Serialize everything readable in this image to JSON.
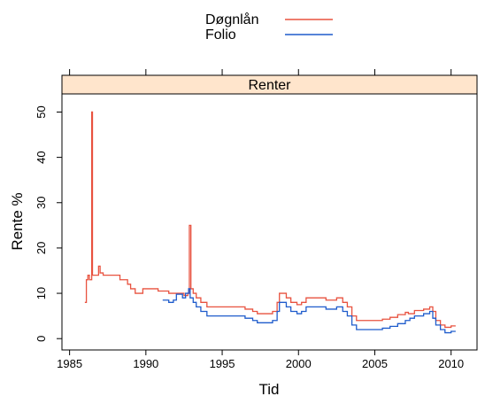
{
  "chart_data": {
    "type": "line",
    "strip_title": "Renter",
    "xlabel": "Tid",
    "ylabel": "Rente %",
    "xlim": [
      1984.5,
      2011.7
    ],
    "ylim": [
      -2.5,
      54
    ],
    "x_ticks": [
      1985,
      1990,
      1995,
      2000,
      2005,
      2010
    ],
    "y_ticks": [
      0,
      10,
      20,
      30,
      40,
      50
    ],
    "grid": false,
    "legend_position": "top",
    "step": true,
    "series": [
      {
        "name": "Døgnlån",
        "color": "#e8523f",
        "points": [
          [
            1986.0,
            8
          ],
          [
            1986.1,
            13
          ],
          [
            1986.2,
            14
          ],
          [
            1986.3,
            13
          ],
          [
            1986.4,
            13
          ],
          [
            1986.45,
            50
          ],
          [
            1986.5,
            14
          ],
          [
            1986.8,
            14
          ],
          [
            1986.9,
            16
          ],
          [
            1987.0,
            14.5
          ],
          [
            1987.2,
            14
          ],
          [
            1988.0,
            14
          ],
          [
            1988.3,
            13
          ],
          [
            1988.8,
            12
          ],
          [
            1989.0,
            11
          ],
          [
            1989.3,
            10
          ],
          [
            1989.8,
            11
          ],
          [
            1990.5,
            11
          ],
          [
            1990.8,
            10.5
          ],
          [
            1991.5,
            10
          ],
          [
            1992.0,
            10
          ],
          [
            1992.5,
            9.5
          ],
          [
            1992.75,
            10
          ],
          [
            1992.85,
            25
          ],
          [
            1992.95,
            11
          ],
          [
            1993.1,
            10
          ],
          [
            1993.3,
            9
          ],
          [
            1993.6,
            8
          ],
          [
            1994.0,
            7
          ],
          [
            1995.0,
            7
          ],
          [
            1996.0,
            7
          ],
          [
            1996.5,
            6.5
          ],
          [
            1997.0,
            6
          ],
          [
            1997.3,
            5.5
          ],
          [
            1998.0,
            5.5
          ],
          [
            1998.3,
            6
          ],
          [
            1998.6,
            8
          ],
          [
            1998.75,
            10
          ],
          [
            1999.2,
            9
          ],
          [
            1999.5,
            8
          ],
          [
            1999.9,
            7.5
          ],
          [
            2000.2,
            8
          ],
          [
            2000.5,
            9
          ],
          [
            2001.5,
            9
          ],
          [
            2001.8,
            8.5
          ],
          [
            2002.2,
            8.5
          ],
          [
            2002.5,
            9
          ],
          [
            2002.9,
            8
          ],
          [
            2003.2,
            7
          ],
          [
            2003.5,
            5
          ],
          [
            2003.8,
            4
          ],
          [
            2005.0,
            4
          ],
          [
            2005.5,
            4.3
          ],
          [
            2006.0,
            4.7
          ],
          [
            2006.5,
            5.3
          ],
          [
            2007.0,
            5.8
          ],
          [
            2007.2,
            5.5
          ],
          [
            2007.6,
            6.2
          ],
          [
            2008.2,
            6.5
          ],
          [
            2008.6,
            7
          ],
          [
            2008.8,
            6
          ],
          [
            2009.0,
            4
          ],
          [
            2009.3,
            3
          ],
          [
            2009.6,
            2.5
          ],
          [
            2010.0,
            2.8
          ],
          [
            2010.3,
            2.8
          ]
        ]
      },
      {
        "name": "Folio",
        "color": "#1f5ccc",
        "points": [
          [
            1991.1,
            8.5
          ],
          [
            1991.5,
            8
          ],
          [
            1991.8,
            8.5
          ],
          [
            1992.0,
            9.8
          ],
          [
            1992.4,
            9
          ],
          [
            1992.6,
            10
          ],
          [
            1992.8,
            11
          ],
          [
            1992.9,
            9
          ],
          [
            1993.1,
            8
          ],
          [
            1993.3,
            7
          ],
          [
            1993.6,
            6
          ],
          [
            1994.0,
            5
          ],
          [
            1995.0,
            5
          ],
          [
            1996.0,
            5
          ],
          [
            1996.5,
            4.5
          ],
          [
            1997.0,
            4
          ],
          [
            1997.3,
            3.5
          ],
          [
            1998.0,
            3.5
          ],
          [
            1998.3,
            4
          ],
          [
            1998.6,
            6
          ],
          [
            1998.75,
            8
          ],
          [
            1999.2,
            7
          ],
          [
            1999.5,
            6
          ],
          [
            1999.9,
            5.5
          ],
          [
            2000.2,
            6
          ],
          [
            2000.5,
            7
          ],
          [
            2001.5,
            7
          ],
          [
            2001.8,
            6.5
          ],
          [
            2002.2,
            6.5
          ],
          [
            2002.5,
            7
          ],
          [
            2002.9,
            6
          ],
          [
            2003.2,
            5
          ],
          [
            2003.5,
            3
          ],
          [
            2003.8,
            2
          ],
          [
            2005.0,
            2
          ],
          [
            2005.5,
            2.3
          ],
          [
            2006.0,
            2.7
          ],
          [
            2006.5,
            3.3
          ],
          [
            2007.0,
            4
          ],
          [
            2007.3,
            4.5
          ],
          [
            2007.6,
            5
          ],
          [
            2008.2,
            5.5
          ],
          [
            2008.6,
            6
          ],
          [
            2008.8,
            4.5
          ],
          [
            2009.0,
            3
          ],
          [
            2009.3,
            2
          ],
          [
            2009.6,
            1.3
          ],
          [
            2010.0,
            1.6
          ],
          [
            2010.3,
            1.6
          ]
        ]
      }
    ]
  }
}
